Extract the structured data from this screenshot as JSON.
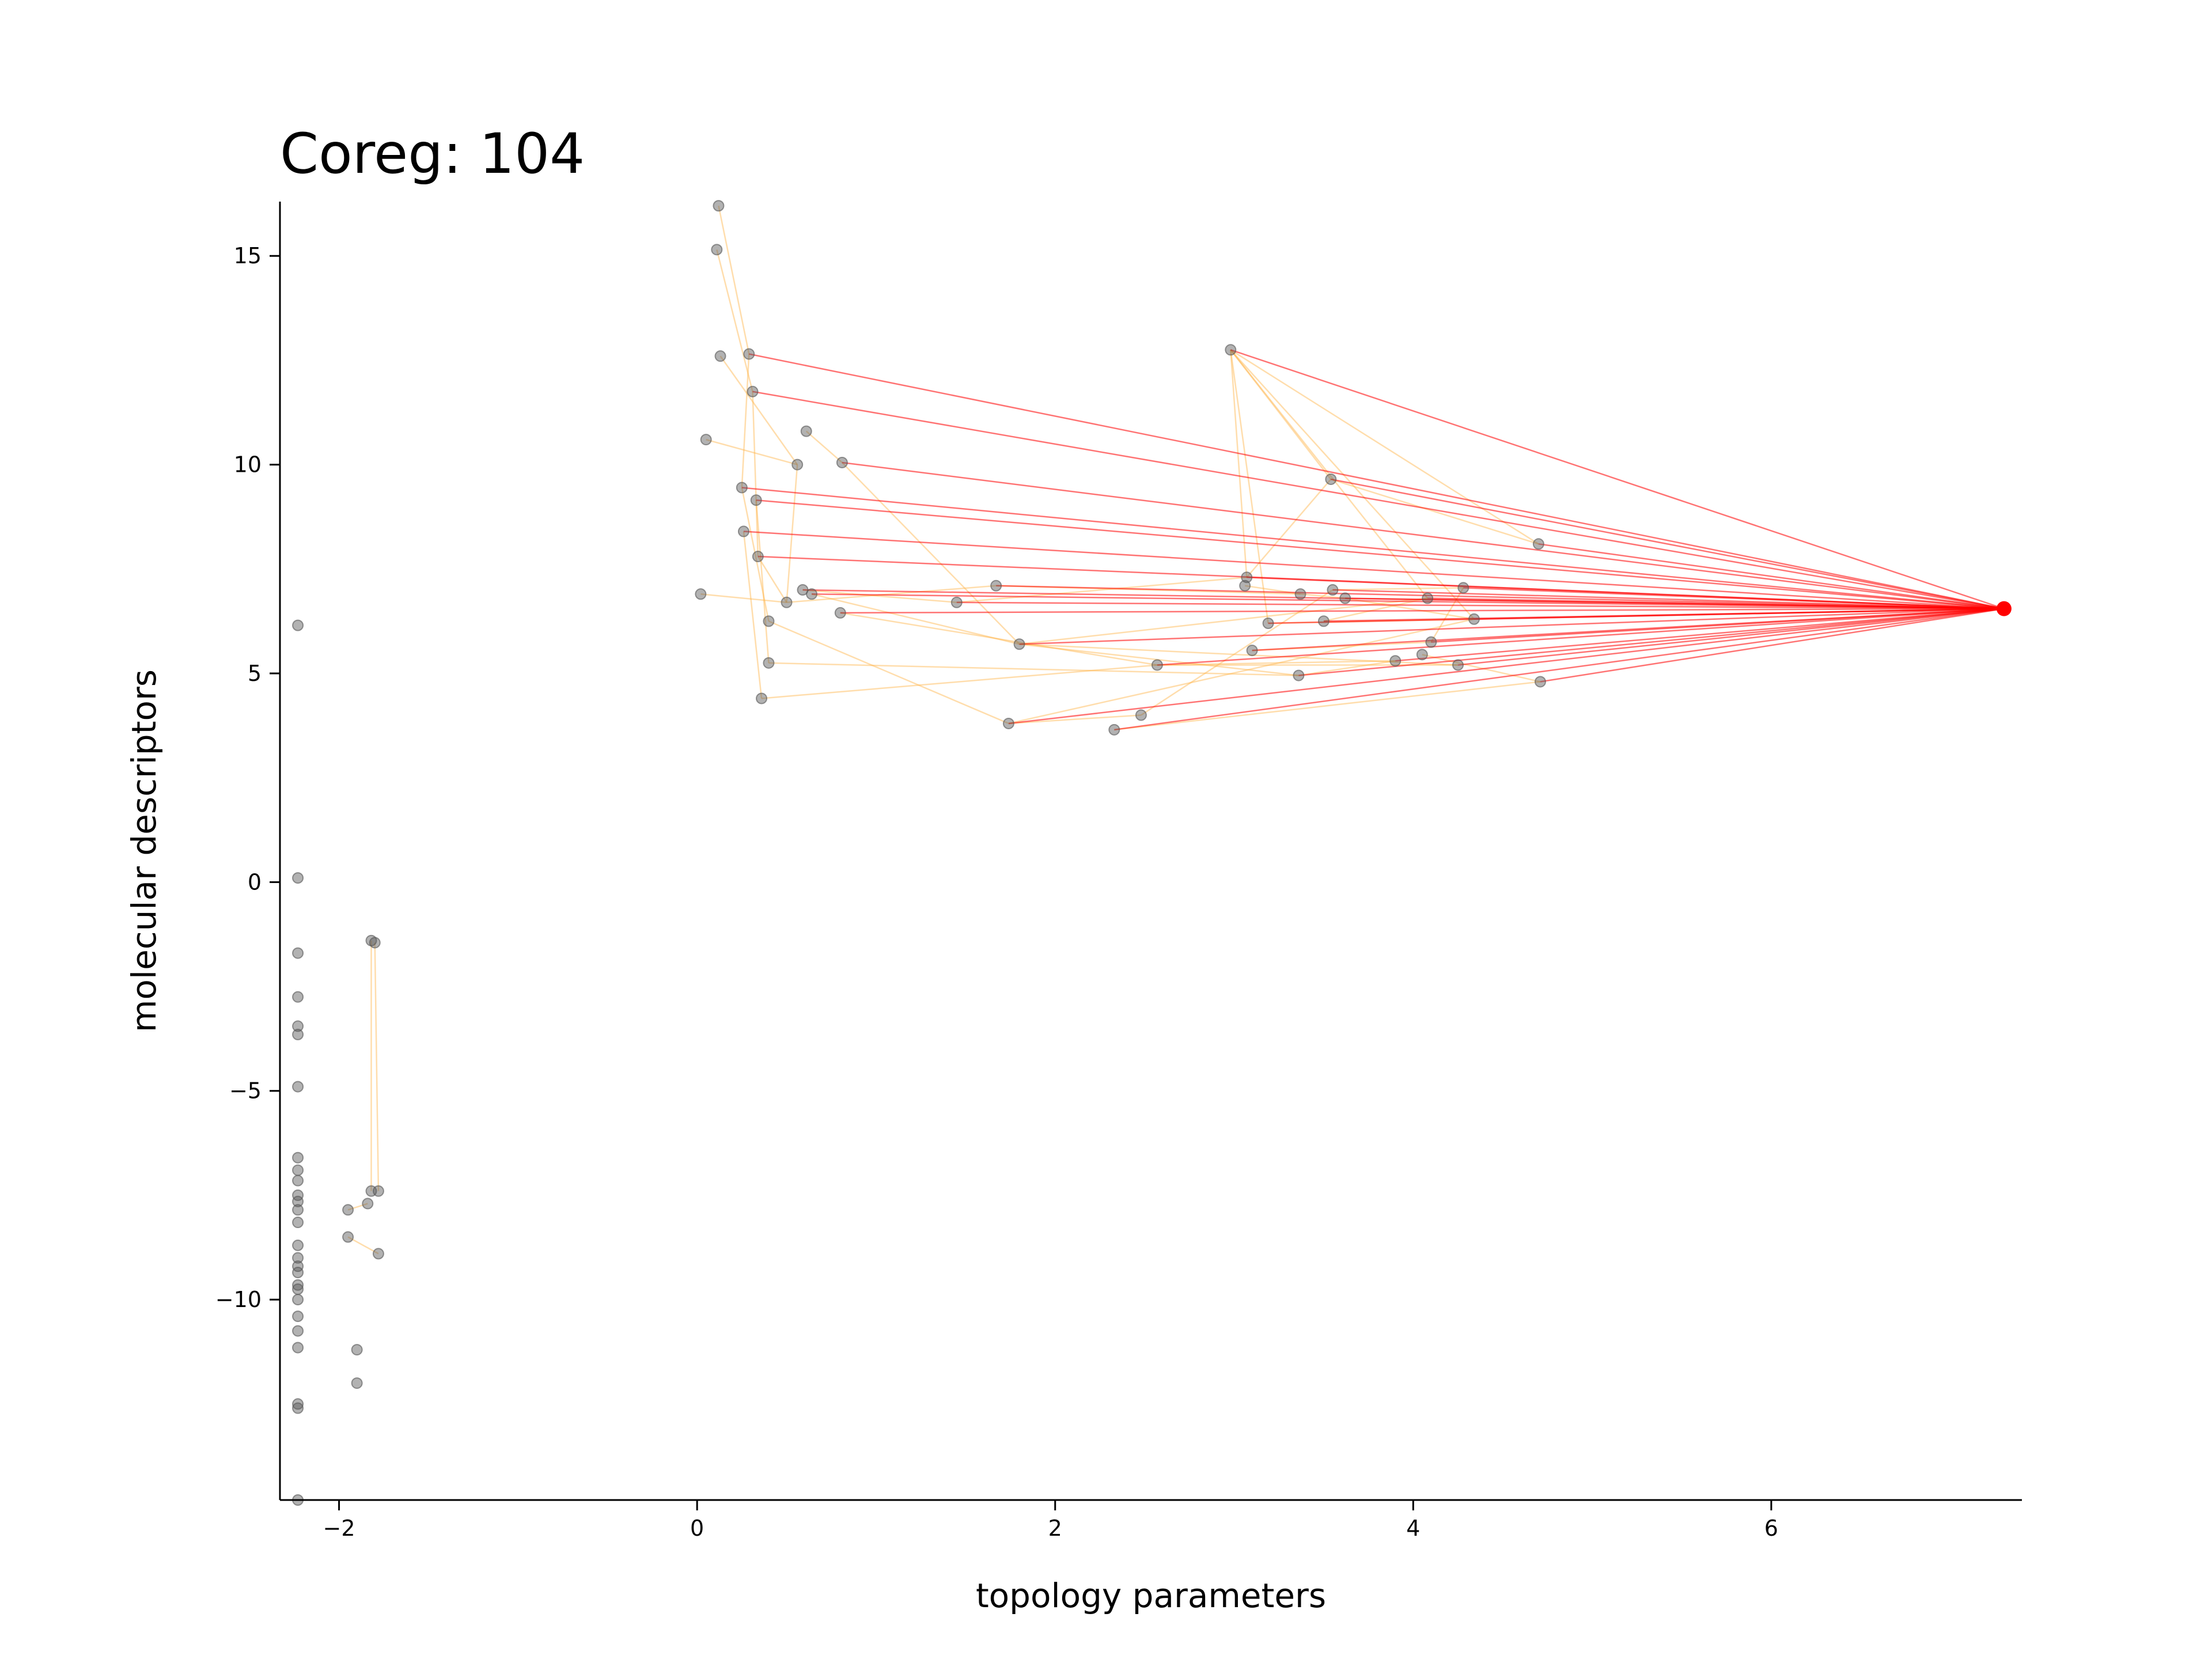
{
  "chart_data": {
    "type": "scatter",
    "title": "Coreg: 104",
    "xlabel": "topology parameters",
    "ylabel": "molecular descriptors",
    "xlim": [
      -2.33,
      7.4
    ],
    "ylim": [
      -14.8,
      16.3
    ],
    "xticks": [
      -2,
      0,
      2,
      4,
      6
    ],
    "yticks": [
      -10,
      -5,
      0,
      5,
      10,
      15
    ],
    "xtick_labels": [
      "−2",
      "0",
      "2",
      "4",
      "6"
    ],
    "ytick_labels": [
      "−10",
      "−5",
      "0",
      "5",
      "10",
      "15"
    ],
    "grid": false,
    "colors": {
      "points": "#555555",
      "target": "#ff0000",
      "edge_red": "#ff0000",
      "edge_orange": "#ffb347"
    },
    "target": {
      "x": 7.3,
      "y": 6.55
    },
    "points": [
      {
        "x": 0.12,
        "y": 16.2
      },
      {
        "x": 0.11,
        "y": 15.15
      },
      {
        "x": 0.13,
        "y": 12.6
      },
      {
        "x": 0.29,
        "y": 12.65
      },
      {
        "x": 0.31,
        "y": 11.75
      },
      {
        "x": 0.05,
        "y": 10.6
      },
      {
        "x": 0.61,
        "y": 10.8
      },
      {
        "x": 0.56,
        "y": 10.0
      },
      {
        "x": 0.81,
        "y": 10.05
      },
      {
        "x": 0.25,
        "y": 9.45
      },
      {
        "x": 0.33,
        "y": 9.15
      },
      {
        "x": 0.26,
        "y": 8.4
      },
      {
        "x": 0.34,
        "y": 7.8
      },
      {
        "x": 0.02,
        "y": 6.9
      },
      {
        "x": 0.5,
        "y": 6.7
      },
      {
        "x": 0.59,
        "y": 7.0
      },
      {
        "x": 0.64,
        "y": 6.9
      },
      {
        "x": 0.8,
        "y": 6.45
      },
      {
        "x": 0.4,
        "y": 6.25
      },
      {
        "x": 0.4,
        "y": 5.25
      },
      {
        "x": 0.36,
        "y": 4.4
      },
      {
        "x": 1.45,
        "y": 6.7
      },
      {
        "x": 1.67,
        "y": 7.1
      },
      {
        "x": 1.8,
        "y": 5.7
      },
      {
        "x": 1.74,
        "y": 3.8
      },
      {
        "x": 2.33,
        "y": 3.65
      },
      {
        "x": 2.48,
        "y": 4.0
      },
      {
        "x": 2.57,
        "y": 5.2
      },
      {
        "x": 2.98,
        "y": 12.75
      },
      {
        "x": 3.07,
        "y": 7.3
      },
      {
        "x": 3.06,
        "y": 7.1
      },
      {
        "x": 3.1,
        "y": 5.55
      },
      {
        "x": 3.19,
        "y": 6.2
      },
      {
        "x": 3.36,
        "y": 4.95
      },
      {
        "x": 3.37,
        "y": 6.9
      },
      {
        "x": 3.5,
        "y": 6.25
      },
      {
        "x": 3.55,
        "y": 7.0
      },
      {
        "x": 3.54,
        "y": 9.65
      },
      {
        "x": 3.62,
        "y": 6.8
      },
      {
        "x": 3.9,
        "y": 5.3
      },
      {
        "x": 4.05,
        "y": 5.45
      },
      {
        "x": 4.08,
        "y": 6.8
      },
      {
        "x": 4.1,
        "y": 5.75
      },
      {
        "x": 4.25,
        "y": 5.2
      },
      {
        "x": 4.28,
        "y": 7.05
      },
      {
        "x": 4.34,
        "y": 6.3
      },
      {
        "x": 4.7,
        "y": 8.1
      },
      {
        "x": 4.71,
        "y": 4.8
      },
      {
        "x": -2.23,
        "y": 6.15
      },
      {
        "x": -2.23,
        "y": 0.1
      },
      {
        "x": -2.23,
        "y": -1.7
      },
      {
        "x": -2.23,
        "y": -2.75
      },
      {
        "x": -2.23,
        "y": -3.45
      },
      {
        "x": -2.23,
        "y": -3.65
      },
      {
        "x": -2.23,
        "y": -4.9
      },
      {
        "x": -2.23,
        "y": -6.6
      },
      {
        "x": -2.23,
        "y": -6.9
      },
      {
        "x": -2.23,
        "y": -7.15
      },
      {
        "x": -2.23,
        "y": -7.5
      },
      {
        "x": -2.23,
        "y": -7.65
      },
      {
        "x": -2.23,
        "y": -7.85
      },
      {
        "x": -2.23,
        "y": -8.15
      },
      {
        "x": -2.23,
        "y": -8.7
      },
      {
        "x": -2.23,
        "y": -9.0
      },
      {
        "x": -2.23,
        "y": -9.2
      },
      {
        "x": -2.23,
        "y": -9.35
      },
      {
        "x": -2.23,
        "y": -9.65
      },
      {
        "x": -2.23,
        "y": -9.75
      },
      {
        "x": -2.23,
        "y": -10.0
      },
      {
        "x": -2.23,
        "y": -10.4
      },
      {
        "x": -2.23,
        "y": -10.75
      },
      {
        "x": -2.23,
        "y": -11.15
      },
      {
        "x": -2.23,
        "y": -12.5
      },
      {
        "x": -2.23,
        "y": -12.6
      },
      {
        "x": -2.23,
        "y": -14.8
      },
      {
        "x": -1.82,
        "y": -1.4
      },
      {
        "x": -1.8,
        "y": -1.45
      },
      {
        "x": -1.82,
        "y": -7.4
      },
      {
        "x": -1.78,
        "y": -7.4
      },
      {
        "x": -1.95,
        "y": -7.85
      },
      {
        "x": -1.84,
        "y": -7.7
      },
      {
        "x": -1.95,
        "y": -8.5
      },
      {
        "x": -1.78,
        "y": -8.9
      },
      {
        "x": -1.9,
        "y": -11.2
      },
      {
        "x": -1.9,
        "y": -12.0
      }
    ],
    "red_edges_from": [
      3,
      4,
      8,
      9,
      10,
      11,
      12,
      15,
      16,
      17,
      21,
      22,
      23,
      24,
      25,
      27,
      28,
      29,
      32,
      35,
      36,
      37,
      38,
      41,
      42,
      44,
      45,
      46,
      47,
      31,
      33,
      39,
      43
    ],
    "orange_edges": [
      [
        0,
        3
      ],
      [
        1,
        4
      ],
      [
        2,
        7
      ],
      [
        3,
        9
      ],
      [
        4,
        12
      ],
      [
        5,
        7
      ],
      [
        6,
        8
      ],
      [
        7,
        14
      ],
      [
        8,
        23
      ],
      [
        9,
        18
      ],
      [
        10,
        19
      ],
      [
        11,
        20
      ],
      [
        12,
        14
      ],
      [
        13,
        14
      ],
      [
        14,
        22
      ],
      [
        15,
        21
      ],
      [
        16,
        23
      ],
      [
        17,
        27
      ],
      [
        18,
        24
      ],
      [
        19,
        33
      ],
      [
        20,
        27
      ],
      [
        21,
        29
      ],
      [
        22,
        34
      ],
      [
        23,
        33
      ],
      [
        23,
        43
      ],
      [
        24,
        26
      ],
      [
        25,
        47
      ],
      [
        26,
        36
      ],
      [
        27,
        39
      ],
      [
        28,
        29
      ],
      [
        28,
        32
      ],
      [
        28,
        37
      ],
      [
        28,
        41
      ],
      [
        28,
        45
      ],
      [
        28,
        46
      ],
      [
        29,
        37
      ],
      [
        30,
        34
      ],
      [
        31,
        42
      ],
      [
        32,
        45
      ],
      [
        33,
        39
      ],
      [
        34,
        38
      ],
      [
        35,
        41
      ],
      [
        36,
        44
      ],
      [
        37,
        46
      ],
      [
        38,
        45
      ],
      [
        40,
        47
      ],
      [
        42,
        44
      ],
      [
        23,
        41
      ],
      [
        24,
        45
      ],
      [
        27,
        43
      ],
      [
        75,
        77
      ],
      [
        76,
        78
      ],
      [
        79,
        80
      ],
      [
        81,
        82
      ]
    ]
  }
}
